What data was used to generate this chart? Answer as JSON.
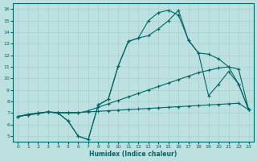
{
  "xlabel": "Humidex (Indice chaleur)",
  "bg_color": "#bde0e0",
  "line_color": "#006666",
  "grid_color": "#a8d0d0",
  "xlim": [
    -0.5,
    23.5
  ],
  "ylim": [
    4.5,
    16.5
  ],
  "xticks": [
    0,
    1,
    2,
    3,
    4,
    5,
    6,
    7,
    8,
    9,
    10,
    11,
    12,
    13,
    14,
    15,
    16,
    17,
    18,
    19,
    20,
    21,
    22,
    23
  ],
  "yticks": [
    5,
    6,
    7,
    8,
    9,
    10,
    11,
    12,
    13,
    14,
    15,
    16
  ],
  "curves": [
    [
      6.7,
      6.9,
      7.0,
      7.1,
      7.0,
      6.3,
      5.0,
      4.7,
      7.7,
      8.2,
      11.1,
      13.2,
      13.5,
      15.0,
      15.7,
      15.9,
      15.5,
      13.3,
      12.2,
      12.1,
      11.7,
      11.0,
      9.5,
      7.3
    ],
    [
      6.7,
      6.85,
      7.0,
      7.1,
      7.0,
      6.3,
      5.0,
      4.7,
      7.7,
      8.2,
      11.1,
      13.2,
      13.5,
      13.7,
      14.3,
      15.0,
      15.9,
      13.3,
      12.2,
      8.5,
      9.5,
      10.6,
      9.5,
      7.3
    ],
    [
      6.7,
      6.85,
      6.95,
      7.1,
      7.0,
      7.0,
      7.0,
      7.2,
      7.5,
      7.8,
      8.1,
      8.4,
      8.7,
      9.0,
      9.3,
      9.6,
      9.9,
      10.2,
      10.5,
      10.7,
      10.9,
      11.0,
      10.8,
      7.3
    ],
    [
      6.7,
      6.85,
      6.95,
      7.1,
      7.05,
      7.05,
      7.05,
      7.1,
      7.15,
      7.2,
      7.25,
      7.3,
      7.35,
      7.4,
      7.45,
      7.5,
      7.55,
      7.6,
      7.65,
      7.7,
      7.75,
      7.8,
      7.85,
      7.3
    ]
  ]
}
